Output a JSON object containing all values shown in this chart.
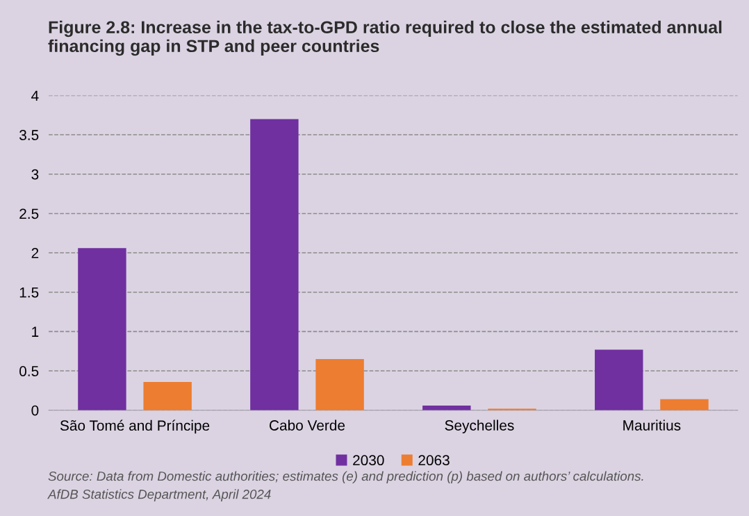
{
  "chart_data": {
    "type": "bar",
    "title": "Figure 2.8: Increase in the tax-to-GPD ratio required to close the estimated annual financing gap in STP and peer countries",
    "categories": [
      "São Tomé and Príncipe",
      "Cabo Verde",
      "Seychelles",
      "Mauritius"
    ],
    "series": [
      {
        "name": "2030",
        "color": "#7030a0",
        "values": [
          2.06,
          3.7,
          0.06,
          0.77
        ]
      },
      {
        "name": "2063",
        "color": "#ed7d31",
        "values": [
          0.36,
          0.65,
          0.02,
          0.14
        ]
      }
    ],
    "ylim": [
      0,
      4
    ],
    "yticks": [
      0,
      0.5,
      1,
      1.5,
      2,
      2.5,
      3,
      3.5,
      4
    ],
    "grid": "y",
    "legend": "bottom",
    "annotations": [
      "Source: Data from Domestic authorities; estimates (e) and prediction (p) based on authors’ calculations.",
      "AfDB Statistics Department, April 2024"
    ]
  }
}
